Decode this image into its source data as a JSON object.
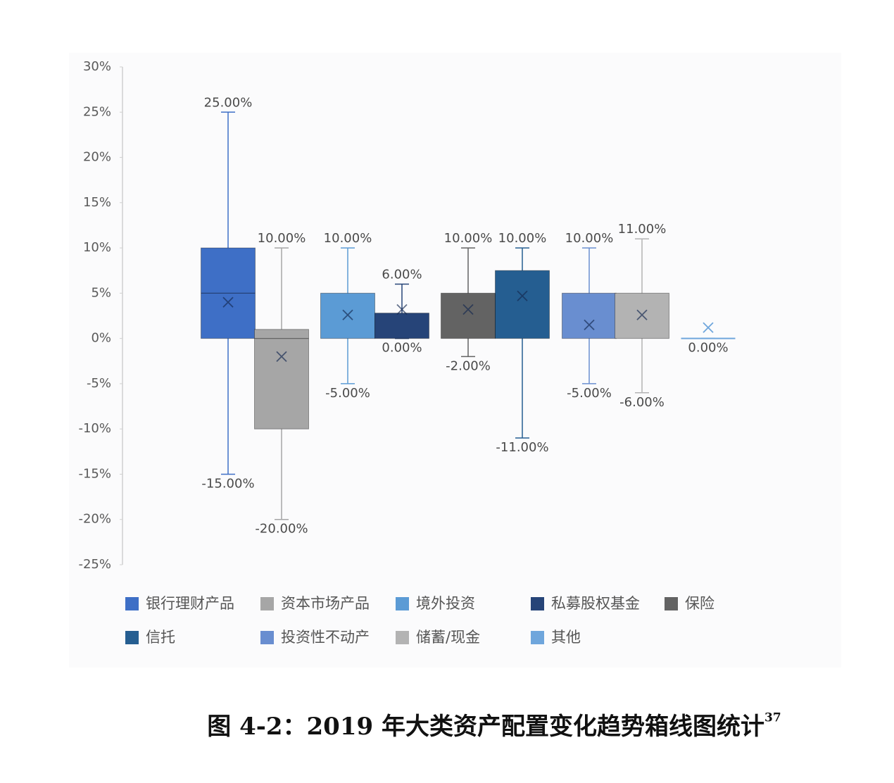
{
  "chart_data": {
    "type": "box",
    "caption": "图 4-2：2019 年大类资产配置变化趋势箱线图统计",
    "footnote": "37",
    "ylim": [
      -25,
      30
    ],
    "yticks": [
      {
        "value": 30,
        "label": "30%"
      },
      {
        "value": 25,
        "label": "25%"
      },
      {
        "value": 20,
        "label": "20%"
      },
      {
        "value": 15,
        "label": "15%"
      },
      {
        "value": 10,
        "label": "10%"
      },
      {
        "value": 5,
        "label": "5%"
      },
      {
        "value": 0,
        "label": "0%"
      },
      {
        "value": -5,
        "label": "-5%"
      },
      {
        "value": -10,
        "label": "-10%"
      },
      {
        "value": -15,
        "label": "-15%"
      },
      {
        "value": -20,
        "label": "-20%"
      },
      {
        "value": -25,
        "label": "-25%"
      }
    ],
    "series": [
      {
        "name": "银行理财产品",
        "color": "#3e6fc6",
        "min": -15,
        "q1": 0,
        "median": 5,
        "q3": 10,
        "max": 25,
        "mean": 4,
        "max_label": "25.00%",
        "min_label": "-15.00%"
      },
      {
        "name": "资本市场产品",
        "color": "#a6a6a6",
        "min": -20,
        "q1": -10,
        "median": 0,
        "q3": 1,
        "max": 10,
        "mean": -2,
        "max_label": "10.00%",
        "min_label": "-20.00%"
      },
      {
        "name": "境外投资",
        "color": "#5b9bd5",
        "min": -5,
        "q1": 0,
        "q3": 5,
        "max": 10,
        "mean": 2.6,
        "max_label": "10.00%",
        "min_label": "-5.00%"
      },
      {
        "name": "私募股权基金",
        "color": "#264478",
        "min": 0,
        "q1": 0,
        "q3": 2.8,
        "max": 6,
        "mean": 3.2,
        "max_label": "6.00%",
        "min_label": "0.00%"
      },
      {
        "name": "保险",
        "color": "#636363",
        "min": -2,
        "q1": 0,
        "q3": 5,
        "max": 10,
        "mean": 3.2,
        "max_label": "10.00%",
        "min_label": "-2.00%"
      },
      {
        "name": "信托",
        "color": "#255e91",
        "min": -11,
        "q1": 0,
        "q3": 7.5,
        "max": 10,
        "mean": 4.7,
        "max_label": "10.00%",
        "min_label": "-11.00%"
      },
      {
        "name": "投资性不动产",
        "color": "#698ed0",
        "min": -5,
        "q1": 0,
        "q3": 5,
        "max": 10,
        "mean": 1.5,
        "max_label": "10.00%",
        "min_label": "-5.00%"
      },
      {
        "name": "储蓄/现金",
        "color": "#b3b3b3",
        "min": -6,
        "q1": 0,
        "q3": 5,
        "max": 11,
        "mean": 2.6,
        "max_label": "11.00%",
        "min_label": "-6.00%"
      },
      {
        "name": "其他",
        "color": "#6fa6dc",
        "min": 0,
        "q1": 0,
        "q3": 0,
        "max": 0,
        "mean": 1.2,
        "min_label": "0.00%"
      }
    ]
  }
}
